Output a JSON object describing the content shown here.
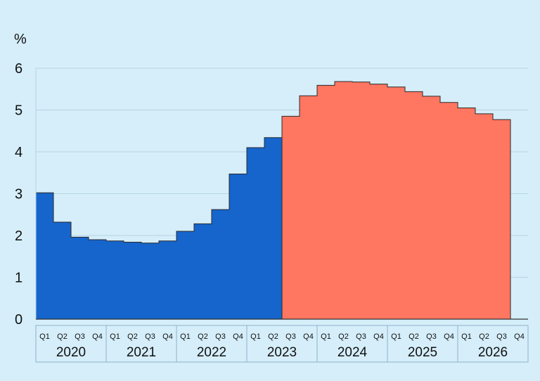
{
  "chart_data": {
    "type": "bar",
    "unit_label": "%",
    "ylim": [
      0,
      6
    ],
    "yticks": [
      "0",
      "1",
      "2",
      "3",
      "4",
      "5",
      "6"
    ],
    "grid": true,
    "years": [
      "2020",
      "2021",
      "2022",
      "2023",
      "2024",
      "2025",
      "2026"
    ],
    "quarter_labels": [
      "Q1",
      "Q2",
      "Q3",
      "Q4"
    ],
    "categories": [
      "2020 Q1",
      "2020 Q2",
      "2020 Q3",
      "2020 Q4",
      "2021 Q1",
      "2021 Q2",
      "2021 Q3",
      "2021 Q4",
      "2022 Q1",
      "2022 Q2",
      "2022 Q3",
      "2022 Q4",
      "2023 Q1",
      "2023 Q2",
      "2023 Q3",
      "2023 Q4",
      "2024 Q1",
      "2024 Q2",
      "2024 Q3",
      "2024 Q4",
      "2025 Q1",
      "2025 Q2",
      "2025 Q3",
      "2025 Q4",
      "2026 Q1",
      "2026 Q2",
      "2026 Q3",
      "2026 Q4"
    ],
    "series": [
      {
        "color": "#1565cc",
        "values": [
          3.02,
          2.32,
          1.96,
          1.9,
          1.87,
          1.84,
          1.82,
          1.87,
          2.1,
          2.28,
          2.62,
          3.47,
          4.1,
          4.34,
          null,
          null,
          null,
          null,
          null,
          null,
          null,
          null,
          null,
          null,
          null,
          null,
          null,
          null
        ]
      },
      {
        "color": "#ff7661",
        "values": [
          null,
          null,
          null,
          null,
          null,
          null,
          null,
          null,
          null,
          null,
          null,
          null,
          null,
          null,
          4.85,
          5.34,
          5.59,
          5.68,
          5.67,
          5.62,
          5.55,
          5.44,
          5.33,
          5.18,
          5.05,
          4.91,
          4.77,
          null
        ]
      }
    ],
    "colors": {
      "background": "#d5eefa",
      "grid": "#b7d3e3",
      "axis": "#333333",
      "outline": "#2a2a2a"
    }
  }
}
